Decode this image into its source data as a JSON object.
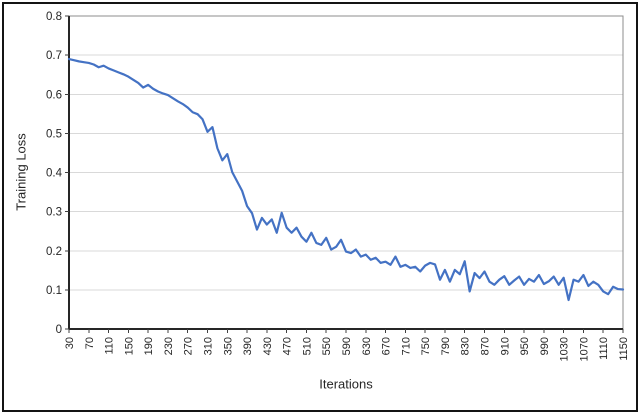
{
  "figure": {
    "xlabel": "Iterations",
    "ylabel": "Training Loss"
  },
  "chart_data": {
    "type": "line",
    "title": "",
    "xlabel": "Iterations",
    "ylabel": "Training Loss",
    "legend": "none",
    "grid": "horizontal",
    "xlim": [
      30,
      1150
    ],
    "ylim": [
      0,
      0.8
    ],
    "x_tick_labels": [
      "30",
      "70",
      "110",
      "150",
      "190",
      "230",
      "270",
      "310",
      "350",
      "390",
      "430",
      "470",
      "510",
      "550",
      "590",
      "630",
      "670",
      "710",
      "750",
      "790",
      "830",
      "870",
      "910",
      "950",
      "990",
      "1030",
      "1070",
      "1110",
      "1150"
    ],
    "y_tick_labels": [
      "0",
      "0.1",
      "0.2",
      "0.3",
      "0.4",
      "0.5",
      "0.6",
      "0.7",
      "0.8"
    ],
    "series": [
      {
        "name": "Training Loss",
        "color": "#4472C4",
        "x_start": 30,
        "x_step": 10,
        "values": [
          0.69,
          0.687,
          0.684,
          0.682,
          0.68,
          0.676,
          0.669,
          0.673,
          0.666,
          0.661,
          0.656,
          0.651,
          0.645,
          0.637,
          0.629,
          0.617,
          0.624,
          0.614,
          0.607,
          0.602,
          0.598,
          0.59,
          0.582,
          0.575,
          0.566,
          0.554,
          0.549,
          0.536,
          0.504,
          0.516,
          0.462,
          0.431,
          0.447,
          0.401,
          0.377,
          0.353,
          0.314,
          0.296,
          0.254,
          0.284,
          0.267,
          0.28,
          0.246,
          0.297,
          0.259,
          0.246,
          0.259,
          0.236,
          0.223,
          0.246,
          0.22,
          0.215,
          0.233,
          0.203,
          0.21,
          0.228,
          0.198,
          0.194,
          0.203,
          0.185,
          0.19,
          0.177,
          0.182,
          0.169,
          0.172,
          0.164,
          0.185,
          0.159,
          0.164,
          0.156,
          0.159,
          0.147,
          0.162,
          0.169,
          0.165,
          0.126,
          0.151,
          0.121,
          0.151,
          0.14,
          0.173,
          0.096,
          0.143,
          0.13,
          0.147,
          0.121,
          0.113,
          0.126,
          0.135,
          0.113,
          0.124,
          0.134,
          0.113,
          0.128,
          0.121,
          0.138,
          0.115,
          0.122,
          0.134,
          0.113,
          0.131,
          0.074,
          0.126,
          0.121,
          0.138,
          0.11,
          0.121,
          0.113,
          0.096,
          0.089,
          0.108,
          0.102,
          0.101
        ]
      }
    ],
    "colors": {
      "line": "#4472C4",
      "gridline": "#D9D9D9",
      "axis": "#262626",
      "plot_border": "#8C8C8C",
      "tick": "#404040",
      "text": "#262626",
      "figure_border": "#141414",
      "background": "#FFFFFF"
    }
  }
}
